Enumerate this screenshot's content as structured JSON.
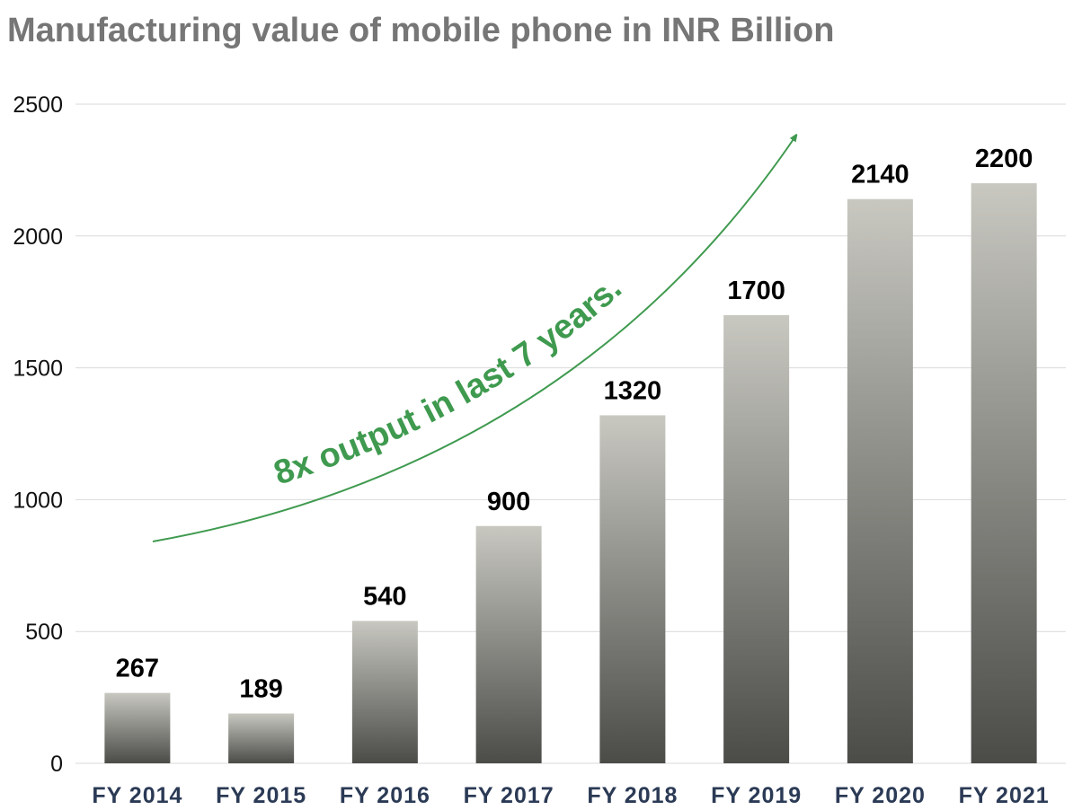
{
  "colors": {
    "title": "#767676",
    "grid": "#d9d9d9",
    "bar_top": "#c8c8c1",
    "bar_bottom": "#4b4b48",
    "x_tick": "#2b3a55",
    "annotation": "#3f9a4f"
  },
  "chart_data": {
    "type": "bar",
    "title": "Manufacturing value of mobile phone in INR Billion",
    "xlabel": "",
    "ylabel": "",
    "categories": [
      "FY 2014",
      "FY 2015",
      "FY 2016",
      "FY 2017",
      "FY 2018",
      "FY 2019",
      "FY 2020",
      "FY 2021"
    ],
    "values": [
      267,
      189,
      540,
      900,
      1320,
      1700,
      2140,
      2200
    ],
    "data_labels": [
      "267",
      "189",
      "540",
      "900",
      "1320",
      "1700",
      "2140",
      "2200"
    ],
    "ylim": [
      0,
      2500
    ],
    "yticks": [
      0,
      500,
      1000,
      1500,
      2000,
      2500
    ],
    "ytick_labels": [
      "0",
      "500",
      "1000",
      "1500",
      "2000",
      "2500"
    ],
    "grid": true,
    "legend": "none",
    "annotation": {
      "text": "8x output in last 7 years.",
      "style": "curved arrow rising toward the later years"
    }
  }
}
